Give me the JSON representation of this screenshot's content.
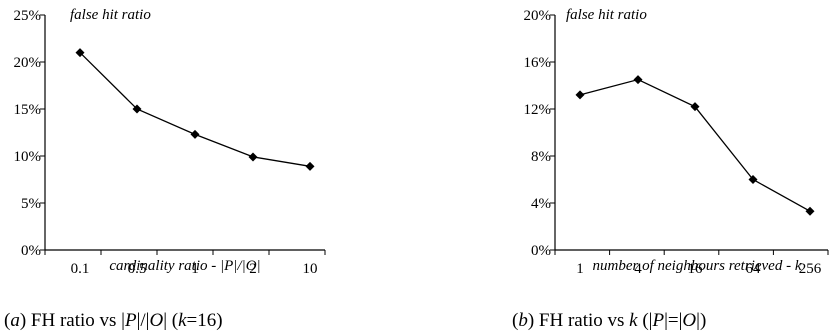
{
  "chart_data": [
    {
      "type": "line",
      "categories": [
        "0.1",
        "0.5",
        "1",
        "2",
        "10"
      ],
      "series": [
        {
          "values": [
            21,
            15,
            12.3,
            9.9,
            8.9
          ]
        }
      ],
      "title": "false hit ratio",
      "xlabel": "cardinality ratio - |P|/|O|",
      "ylabel": "",
      "ylim": [
        0,
        25
      ],
      "yticks": [
        "0%",
        "5%",
        "10%",
        "15%",
        "20%",
        "25%"
      ],
      "caption": {
        "prefix": "(",
        "letter": "a",
        "body_1": ") FH ratio vs |",
        "p": "P",
        "body_2": "|/|",
        "o": "O",
        "body_3": "| (",
        "k": "k",
        "body_4": "=16)"
      },
      "marker_color": "#000000",
      "line_color": "#000000"
    },
    {
      "type": "line",
      "categories": [
        "1",
        "4",
        "16",
        "64",
        "256"
      ],
      "series": [
        {
          "values": [
            13.2,
            14.5,
            12.2,
            6.0,
            3.3
          ]
        }
      ],
      "title": "false hit ratio",
      "xlabel": "number of neighbours retrieved - k",
      "ylabel": "",
      "ylim": [
        0,
        20
      ],
      "yticks": [
        "0%",
        "4%",
        "8%",
        "12%",
        "16%",
        "20%"
      ],
      "caption": {
        "prefix": "(",
        "letter": "b",
        "body_1": ") FH ratio vs ",
        "k": "k",
        "body_2": " (|",
        "p": "P",
        "body_3": "|=|",
        "o": "O",
        "body_4": "|)"
      },
      "marker_color": "#000000",
      "line_color": "#000000"
    }
  ]
}
